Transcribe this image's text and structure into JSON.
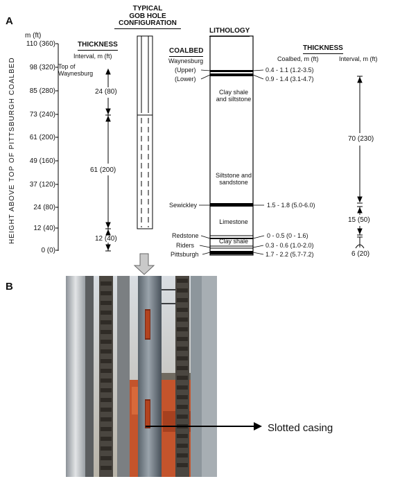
{
  "panel_a": {
    "label": "A",
    "y_axis": {
      "unit": "m (ft)",
      "title": "HEIGHT ABOVE TOP OF PITTSBURGH COALBED",
      "ticks": [
        "110 (360)",
        "98 (320)",
        "85 (280)",
        "73 (240)",
        "61 (200)",
        "49 (160)",
        "37 (120)",
        "24 (80)",
        "12 (40)",
        "0 (0)"
      ]
    },
    "gob_thickness": {
      "title": "THICKNESS",
      "subtitle": "Interval, m (ft)",
      "top_label": "Top of Waynesburg",
      "intervals": [
        "24 (80)",
        "61 (200)",
        "12 (40)"
      ]
    },
    "gob_hole": {
      "title_line1": "TYPICAL",
      "title_line2": "GOB HOLE",
      "title_line3": "CONFIGURATION"
    },
    "coalbed_header": "COALBED",
    "lithology": {
      "title": "LITHOLOGY",
      "units": [
        "Clay shale and siltstone",
        "Siltstone and sandstone",
        "Limestone",
        "Clay shale"
      ]
    },
    "coalbeds": [
      {
        "name": "Waynesburg",
        "thickness": ""
      },
      {
        "name": "(Upper)",
        "thickness": "0.4 - 1.1  (1.2-3.5)"
      },
      {
        "name": "(Lower)",
        "thickness": "0.9 - 1.4  (3.1-4.7)"
      },
      {
        "name": "Sewickley",
        "thickness": "1.5 - 1.8  (5.0-6.0)"
      },
      {
        "name": "Redstone",
        "thickness": "0 - 0.5   (0 - 1.6)"
      },
      {
        "name": "Riders",
        "thickness": "0.3 - 0.6  (1.0-2.0)"
      },
      {
        "name": "Pittsburgh",
        "thickness": "1.7 - 2.2  (5.7-7.2)"
      }
    ],
    "right_thickness": {
      "title": "THICKNESS",
      "col1": "Coalbed, m (ft)",
      "col2": "Interval, m (ft)",
      "intervals": [
        "70 (230)",
        "15 (50)",
        "6 (20)"
      ]
    }
  },
  "panel_b": {
    "label": "B",
    "callout": "Slotted casing"
  }
}
